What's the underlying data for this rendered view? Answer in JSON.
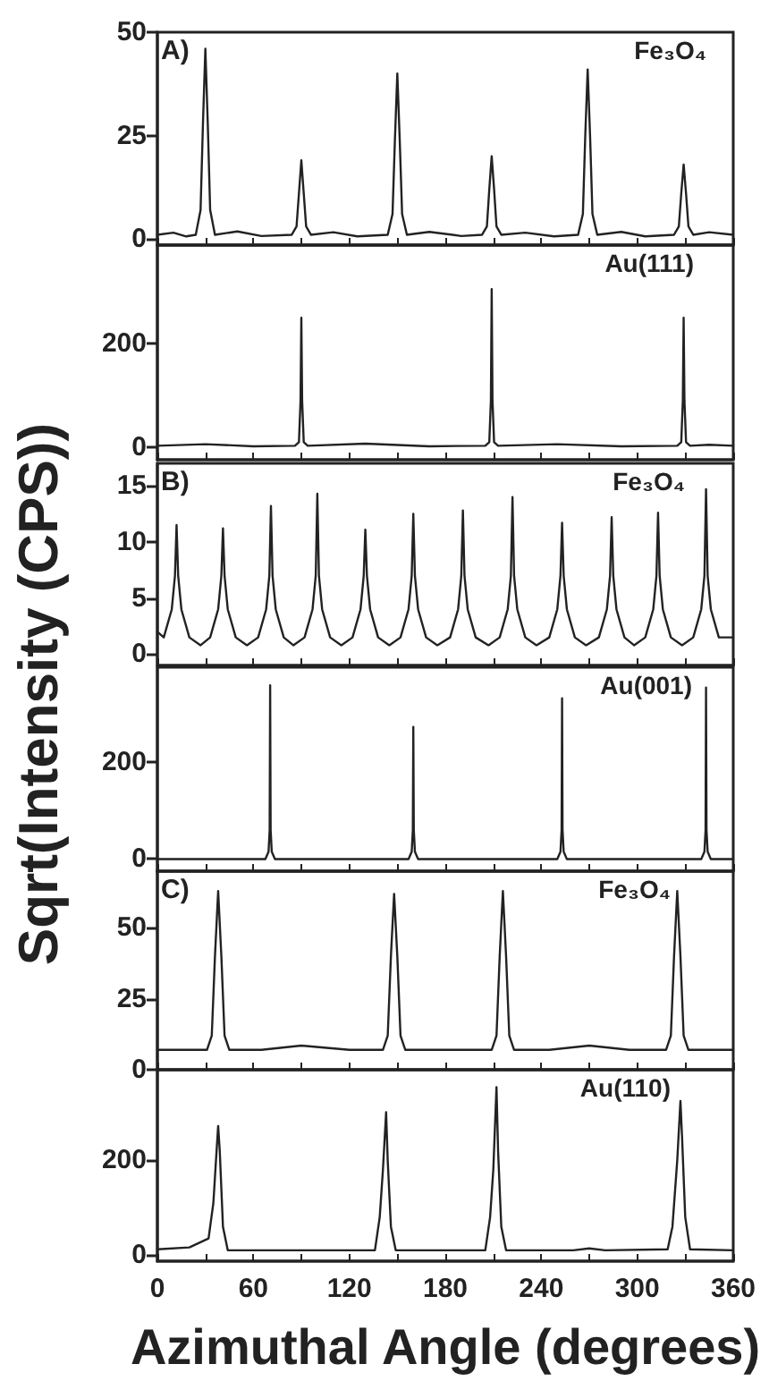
{
  "chart_data": [
    {
      "type": "line",
      "annotations": [
        "A)",
        "Fe₃O₄"
      ],
      "x": [
        0,
        10,
        18,
        24,
        27,
        28.5,
        30,
        31.5,
        33,
        36,
        50,
        65,
        84,
        87,
        88.5,
        90,
        91.5,
        93,
        96,
        110,
        125,
        144,
        147,
        148.5,
        150,
        151.5,
        153,
        156,
        170,
        190,
        203,
        206,
        207.5,
        209,
        210.5,
        212,
        215,
        230,
        248,
        263,
        266,
        267.5,
        269,
        270.5,
        272,
        275,
        290,
        305,
        323,
        326,
        327.5,
        329,
        330.5,
        332,
        335,
        345,
        360
      ],
      "series": [
        {
          "color": "#222222",
          "values": [
            1,
            1.5,
            0.6,
            1,
            7,
            28,
            46,
            28,
            7,
            1,
            1.8,
            0.7,
            1,
            3,
            11,
            19,
            11,
            3,
            1,
            1.6,
            0.6,
            1,
            6,
            24,
            40,
            24,
            6,
            1,
            1.7,
            0.7,
            1,
            3,
            12,
            20,
            12,
            3,
            1,
            1.5,
            0.6,
            1,
            6,
            25,
            41,
            25,
            6,
            1,
            1.7,
            0.6,
            1,
            3,
            11,
            18,
            11,
            3,
            1,
            1.6,
            1
          ]
        }
      ],
      "xlim": [
        0,
        360
      ],
      "xticks": [
        0,
        {
          "value": 30,
          "label": null
        },
        60,
        {
          "value": 90,
          "label": null
        },
        120,
        {
          "value": 150,
          "label": null
        },
        180,
        {
          "value": 210,
          "label": null
        },
        240,
        {
          "value": 270,
          "label": null
        },
        300,
        {
          "value": 330,
          "label": null
        },
        360
      ],
      "ylim": [
        -1.5,
        50
      ],
      "yticks": [
        0,
        25,
        50
      ],
      "tick_labels": "y",
      "grid": false,
      "marker": "none",
      "line_style": "solid"
    },
    {
      "type": "line",
      "annotations": [
        "Au(111)"
      ],
      "x": [
        0,
        30,
        60,
        86,
        88.5,
        89.5,
        90,
        90.5,
        91.5,
        94,
        130,
        170,
        205,
        207.5,
        208.5,
        209,
        209.5,
        210.5,
        213,
        250,
        290,
        325,
        327.5,
        328.5,
        329,
        329.5,
        330.5,
        333,
        345,
        360
      ],
      "series": [
        {
          "color": "#222222",
          "values": [
            3,
            6,
            2,
            3,
            10,
            90,
            250,
            90,
            10,
            3,
            7,
            2,
            3,
            10,
            90,
            305,
            90,
            10,
            3,
            6,
            2,
            3,
            10,
            90,
            250,
            90,
            10,
            3,
            5,
            3
          ]
        }
      ],
      "xlim": [
        0,
        360
      ],
      "xticks": [
        0,
        {
          "value": 30,
          "label": null
        },
        60,
        {
          "value": 90,
          "label": null
        },
        120,
        {
          "value": 150,
          "label": null
        },
        180,
        {
          "value": 210,
          "label": null
        },
        240,
        {
          "value": 270,
          "label": null
        },
        300,
        {
          "value": 330,
          "label": null
        },
        360
      ],
      "ylim": [
        -24,
        390
      ],
      "yticks": [
        0,
        200
      ],
      "tick_labels": "y",
      "grid": false,
      "marker": "none",
      "line_style": "solid"
    },
    {
      "type": "line",
      "annotations": [
        "B)",
        "Fe₃O₄"
      ],
      "ylabel": "Sqrt(Intensity (CPS))",
      "x": [
        0,
        4,
        9,
        11,
        12,
        13,
        15,
        20,
        27,
        33,
        38,
        40,
        41,
        42,
        44,
        49,
        56,
        63,
        68,
        70,
        71,
        72,
        74,
        79,
        85,
        92,
        97,
        99,
        100,
        101,
        103,
        108,
        115,
        122,
        127,
        129,
        130,
        131,
        133,
        138,
        145,
        152,
        157,
        159,
        160,
        161,
        163,
        168,
        175,
        183,
        188,
        190,
        191,
        192,
        194,
        199,
        207,
        214,
        219,
        221,
        222,
        223,
        225,
        230,
        237,
        245,
        250,
        252,
        253,
        254,
        256,
        261,
        268,
        276,
        281,
        283,
        284,
        285,
        287,
        292,
        298,
        305,
        310,
        312,
        313,
        314,
        316,
        321,
        328,
        335,
        340,
        342,
        343,
        344,
        346,
        351,
        360
      ],
      "series": [
        {
          "color": "#222222",
          "values": [
            2,
            1.5,
            4,
            7,
            11.5,
            7,
            4,
            1.5,
            0.8,
            1.5,
            4,
            7,
            11.2,
            7,
            4,
            1.5,
            0.8,
            1.5,
            4,
            7,
            13.2,
            7,
            4,
            1.5,
            0.8,
            1.5,
            4,
            7,
            14.3,
            7,
            4,
            1.5,
            0.8,
            1.5,
            4,
            7,
            11.1,
            7,
            4,
            1.5,
            0.8,
            1.5,
            4,
            7,
            12.5,
            7,
            4,
            1.5,
            0.8,
            1.5,
            4,
            7,
            12.8,
            7,
            4,
            1.5,
            0.8,
            1.5,
            4,
            7,
            14,
            7,
            4,
            1.5,
            0.8,
            1.5,
            4,
            7,
            11.7,
            7,
            4,
            1.5,
            0.8,
            1.5,
            4,
            7,
            12.2,
            7,
            4,
            1.5,
            0.8,
            1.5,
            4,
            7,
            12.6,
            7,
            4,
            1.5,
            0.8,
            1.5,
            4,
            7,
            14.7,
            7,
            4,
            1.5,
            1.5
          ]
        }
      ],
      "xlim": [
        0,
        360
      ],
      "xticks": [
        0,
        {
          "value": 30,
          "label": null
        },
        60,
        {
          "value": 90,
          "label": null
        },
        120,
        {
          "value": 150,
          "label": null
        },
        180,
        {
          "value": 210,
          "label": null
        },
        240,
        {
          "value": 270,
          "label": null
        },
        300,
        {
          "value": 330,
          "label": null
        },
        360
      ],
      "ylim": [
        -1,
        17
      ],
      "yticks": [
        0,
        5,
        10,
        15
      ],
      "tick_labels": "y",
      "grid": false,
      "marker": "none",
      "line_style": "solid"
    },
    {
      "type": "line",
      "annotations": [
        "Au(001)"
      ],
      "x": [
        0,
        67.5,
        69.5,
        70.2,
        70.5,
        70.8,
        71.5,
        73.5,
        157,
        159,
        159.7,
        160,
        160.3,
        161,
        163,
        250,
        252,
        252.7,
        253,
        253.3,
        254,
        256,
        340,
        342,
        342.7,
        343,
        343.3,
        344,
        346,
        360
      ],
      "series": [
        {
          "color": "#222222",
          "values": [
            0,
            0,
            15,
            60,
            358,
            60,
            15,
            0,
            0,
            15,
            60,
            272,
            60,
            15,
            0,
            0,
            15,
            60,
            331,
            60,
            15,
            0,
            0,
            15,
            60,
            353,
            60,
            15,
            0,
            0
          ]
        }
      ],
      "xlim": [
        0,
        360
      ],
      "xticks": [
        0,
        {
          "value": 30,
          "label": null
        },
        60,
        {
          "value": 90,
          "label": null
        },
        120,
        {
          "value": 150,
          "label": null
        },
        180,
        {
          "value": 210,
          "label": null
        },
        240,
        {
          "value": 270,
          "label": null
        },
        300,
        {
          "value": 330,
          "label": null
        },
        360
      ],
      "ylim": [
        -25,
        395
      ],
      "yticks": [
        0,
        200
      ],
      "tick_labels": "y",
      "grid": false,
      "marker": "none",
      "line_style": "solid"
    },
    {
      "type": "line",
      "annotations": [
        "C)",
        "Fe₃O₄"
      ],
      "x": [
        0,
        31,
        34,
        36,
        38,
        40,
        42,
        45,
        65,
        90,
        120,
        141,
        144,
        146,
        148,
        150,
        152,
        155,
        209,
        212,
        214,
        216,
        218,
        220,
        223,
        245,
        270,
        295,
        318,
        321,
        323,
        325,
        327,
        329,
        332,
        360
      ],
      "series": [
        {
          "color": "#222222",
          "values": [
            7,
            7,
            12,
            40,
            63,
            40,
            12,
            7,
            7,
            8.5,
            7,
            7,
            12,
            40,
            62,
            40,
            12,
            7,
            7,
            12,
            40,
            63,
            40,
            12,
            7,
            7,
            8.5,
            7,
            7,
            12,
            40,
            63,
            40,
            12,
            7,
            7
          ]
        }
      ],
      "xlim": [
        0,
        360
      ],
      "xticks": [
        0,
        {
          "value": 30,
          "label": null
        },
        60,
        {
          "value": 90,
          "label": null
        },
        120,
        {
          "value": 150,
          "label": null
        },
        180,
        {
          "value": 210,
          "label": null
        },
        240,
        {
          "value": 270,
          "label": null
        },
        300,
        {
          "value": 330,
          "label": null
        },
        360
      ],
      "ylim": [
        0,
        70
      ],
      "yticks": [
        0,
        25,
        50
      ],
      "tick_labels": "y",
      "grid": false,
      "marker": "none",
      "line_style": "solid"
    },
    {
      "type": "line",
      "annotations": [
        "Au(110)"
      ],
      "xlabel": "Azimuthal Angle (degrees)",
      "x": [
        0,
        20,
        32,
        35,
        37,
        38,
        39,
        41,
        44,
        136,
        139,
        141,
        143,
        144,
        146,
        149,
        205,
        208,
        210,
        212,
        213,
        215,
        218,
        260,
        270,
        280,
        319,
        322,
        325,
        327,
        328,
        330,
        333,
        360
      ],
      "series": [
        {
          "color": "#222222",
          "values": [
            12,
            16,
            35,
            110,
            220,
            273,
            220,
            60,
            10,
            10,
            80,
            180,
            302,
            200,
            60,
            10,
            10,
            80,
            180,
            355,
            220,
            60,
            10,
            10,
            14,
            10,
            12,
            60,
            200,
            326,
            250,
            80,
            12,
            10
          ]
        }
      ],
      "xlim": [
        0,
        360
      ],
      "xticks": [
        0,
        {
          "value": 30,
          "label": null
        },
        60,
        {
          "value": 90,
          "label": null
        },
        120,
        {
          "value": 150,
          "label": null
        },
        180,
        {
          "value": 210,
          "label": null
        },
        240,
        {
          "value": 270,
          "label": null
        },
        300,
        {
          "value": 330,
          "label": null
        },
        360
      ],
      "ylim": [
        -13,
        392
      ],
      "yticks": [
        0,
        200
      ],
      "grid": false,
      "marker": "none",
      "line_style": "solid"
    }
  ]
}
